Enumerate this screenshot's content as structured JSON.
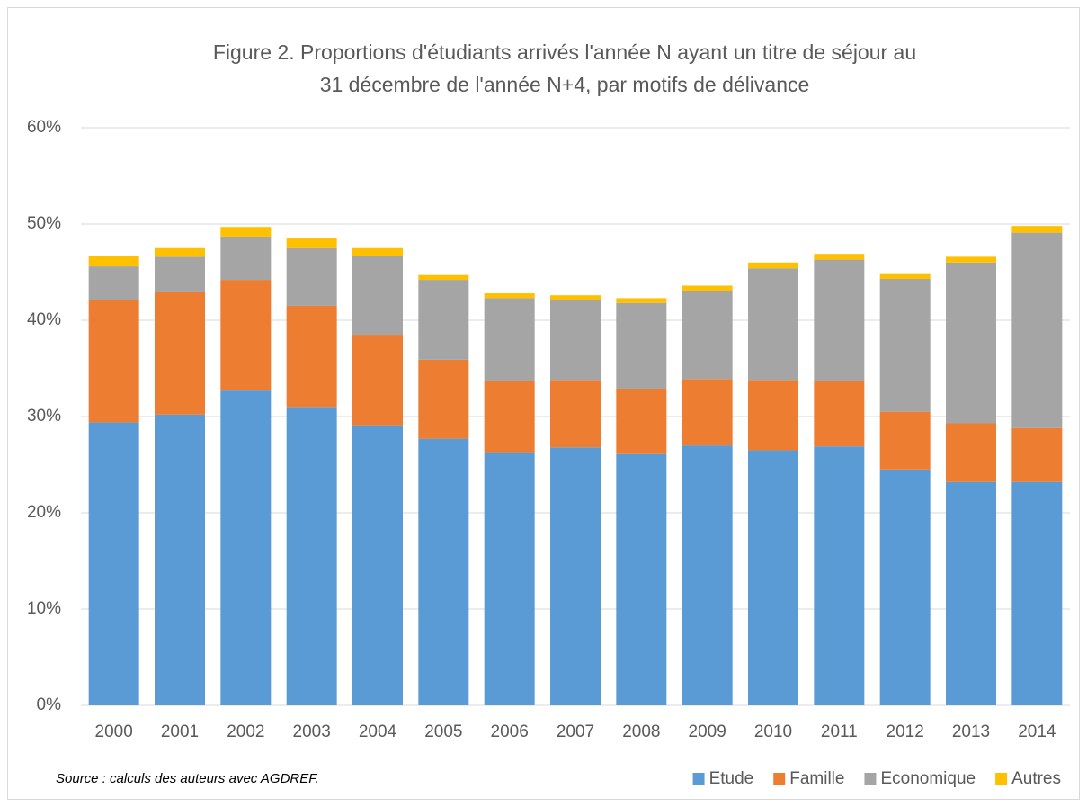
{
  "chart_data": {
    "type": "stacked_bar",
    "title": [
      "Figure 2. Proportions d'étudiants arrivés l'année N ayant un titre de séjour au",
      "31 décembre de l'année N+4, par motifs de délivance"
    ],
    "annotation": "Source : calculs des auteurs avec AGDREF.",
    "categories": [
      "2000",
      "2001",
      "2002",
      "2003",
      "2004",
      "2005",
      "2006",
      "2007",
      "2008",
      "2009",
      "2010",
      "2011",
      "2012",
      "2013",
      "2014"
    ],
    "series": [
      {
        "name": "Etude",
        "color": "#5b9bd5",
        "values": [
          29.4,
          30.2,
          32.7,
          31.0,
          29.1,
          27.7,
          26.3,
          26.8,
          26.1,
          27.0,
          26.5,
          26.9,
          24.5,
          23.2,
          23.2
        ]
      },
      {
        "name": "Famille",
        "color": "#ed7d31",
        "values": [
          12.7,
          12.7,
          11.5,
          10.5,
          9.4,
          8.2,
          7.4,
          7.0,
          6.8,
          6.9,
          7.3,
          6.8,
          6.0,
          6.1,
          5.6
        ]
      },
      {
        "name": "Economique",
        "color": "#a5a5a5",
        "values": [
          3.5,
          3.7,
          4.5,
          6.0,
          8.2,
          8.3,
          8.6,
          8.3,
          8.9,
          9.1,
          11.6,
          12.6,
          13.8,
          16.7,
          20.3
        ]
      },
      {
        "name": "Autres",
        "color": "#ffc000",
        "values": [
          1.1,
          0.9,
          1.0,
          1.0,
          0.8,
          0.5,
          0.5,
          0.5,
          0.5,
          0.6,
          0.6,
          0.6,
          0.5,
          0.6,
          0.7
        ]
      }
    ],
    "ylim": [
      0,
      60
    ],
    "yticks": [
      {
        "value": 0,
        "label": "0%"
      },
      {
        "value": 10,
        "label": "10%"
      },
      {
        "value": 20,
        "label": "20%"
      },
      {
        "value": 30,
        "label": "30%"
      },
      {
        "value": 40,
        "label": "40%"
      },
      {
        "value": 50,
        "label": "50%"
      },
      {
        "value": 60,
        "label": "60%"
      }
    ],
    "grid": true,
    "legend": "bottom-right"
  }
}
